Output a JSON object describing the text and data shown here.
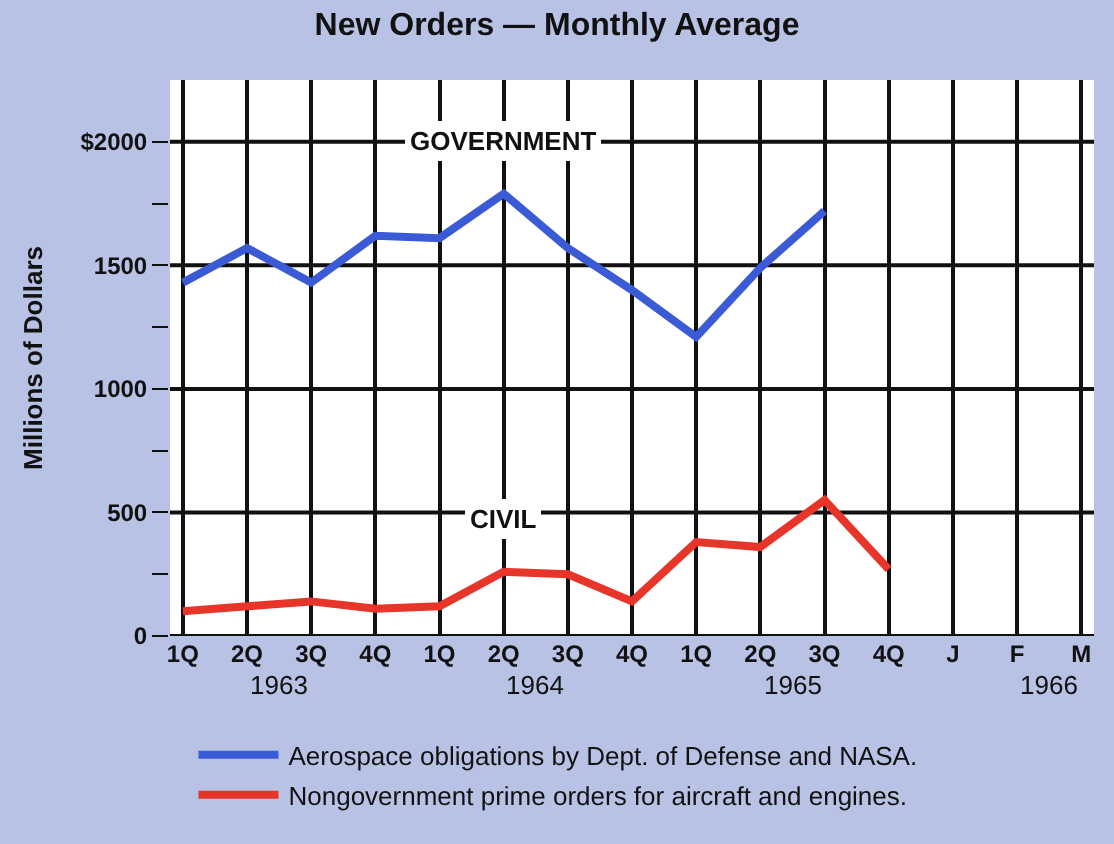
{
  "chart_data": {
    "type": "line",
    "title": "New Orders — Monthly Average",
    "ylabel": "Millions of Dollars",
    "categories": [
      "1Q",
      "2Q",
      "3Q",
      "4Q",
      "1Q",
      "2Q",
      "3Q",
      "4Q",
      "1Q",
      "2Q",
      "3Q",
      "4Q",
      "J",
      "F",
      "M"
    ],
    "series": [
      {
        "name": "Aerospace obligations by Dept. of Defense and NASA.",
        "color": "#3b5bd6",
        "values": [
          1430,
          1570,
          1430,
          1620,
          1610,
          1790,
          1570,
          1400,
          1210,
          1490,
          1720,
          null,
          null,
          null,
          null
        ]
      },
      {
        "name": "Nongovernment prime orders for aircraft and engines.",
        "color": "#e8352a",
        "values": [
          100,
          120,
          140,
          110,
          120,
          260,
          250,
          140,
          380,
          360,
          550,
          270,
          null,
          null,
          null
        ]
      }
    ],
    "ylim": [
      0,
      2250
    ],
    "yticks": [
      0,
      {
        "value": 250,
        "label": null
      },
      500,
      {
        "value": 750,
        "label": null
      },
      1000,
      {
        "value": 1250,
        "label": null
      },
      1500,
      {
        "value": 1750,
        "label": null
      },
      {
        "value": 2000,
        "label": "$2000"
      }
    ],
    "annotations": [
      "GOVERNMENT",
      "CIVIL",
      "1963",
      "1964",
      "1965",
      "1966"
    ],
    "grid": true,
    "legend": "bottom",
    "marker": "none",
    "line_style": "solid"
  }
}
